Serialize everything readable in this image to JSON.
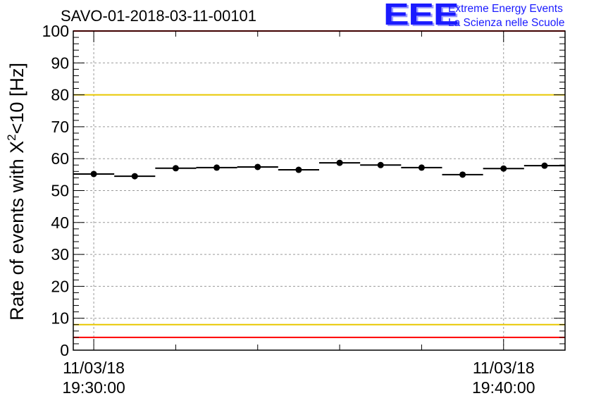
{
  "title": "SAVO-01-2018-03-11-00101",
  "logo": {
    "mark": "EEE",
    "line1": "Extreme Energy Events",
    "line2": "La Scienza nelle Scuole"
  },
  "chart_data": {
    "type": "scatter",
    "title": "SAVO-01-2018-03-11-00101",
    "ylabel_main": "Rate of events with X",
    "ylabel_sup": "2",
    "ylabel_tail": "<10 [Hz]",
    "ylim": [
      0,
      100
    ],
    "yticks": [
      0,
      10,
      20,
      30,
      40,
      50,
      60,
      70,
      80,
      90,
      100
    ],
    "xlim_minutes": [
      -0.5,
      11.5
    ],
    "xticks": [
      {
        "minute": 0,
        "line1": "11/03/18",
        "line2": "19:30:00"
      },
      {
        "minute": 10,
        "line1": "11/03/18",
        "line2": "19:40:00"
      }
    ],
    "grid": true,
    "reference_lines": [
      {
        "value": 100,
        "color": "#ff0000"
      },
      {
        "value": 80,
        "color": "#e8c800"
      },
      {
        "value": 8,
        "color": "#e8c800"
      },
      {
        "value": 4,
        "color": "#ff0000"
      }
    ],
    "series": [
      {
        "x": [
          0,
          1,
          2,
          3,
          4,
          5,
          6,
          7,
          8,
          9,
          10,
          11
        ],
        "y": [
          55.2,
          54.5,
          57.0,
          57.2,
          57.4,
          56.5,
          58.7,
          58.0,
          57.2,
          55.0,
          56.9,
          57.8
        ],
        "x_halfwidth": 0.5
      }
    ]
  }
}
